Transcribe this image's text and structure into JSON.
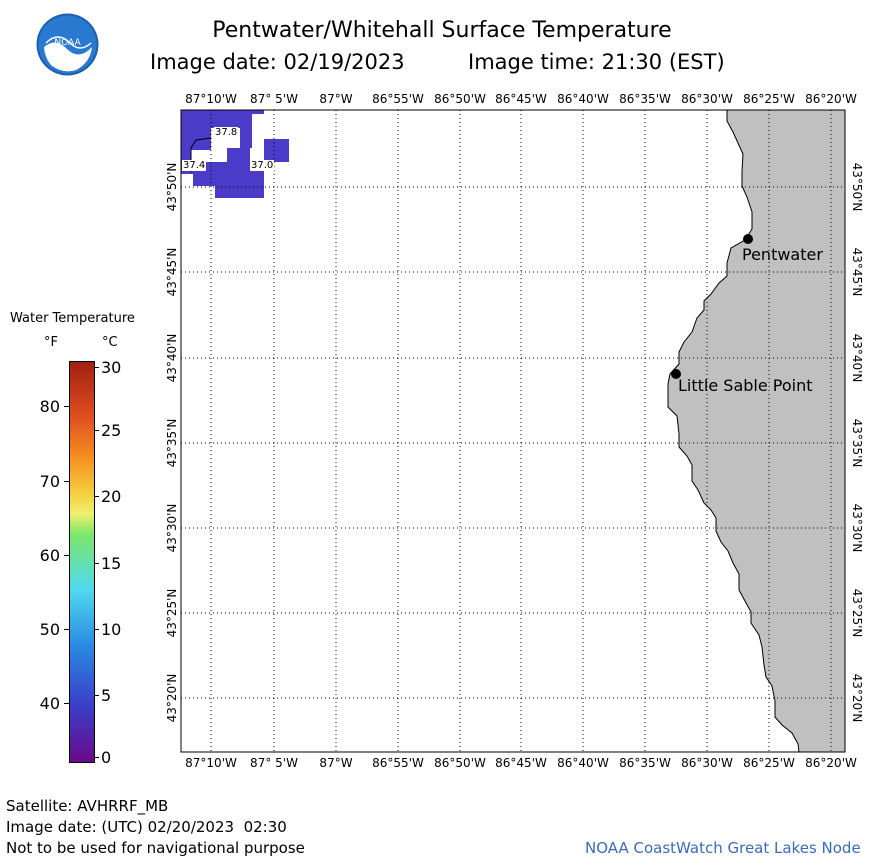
{
  "header": {
    "title": "Pentwater/Whitehall Surface Temperature",
    "image_date": "Image date: 02/19/2023",
    "image_time": "Image time: 21:30 (EST)"
  },
  "logo": {
    "text": "NOAA"
  },
  "map": {
    "lon_labels": [
      "87°10'W",
      "87° 5'W",
      "87°W",
      "86°55'W",
      "86°50'W",
      "86°45'W",
      "86°40'W",
      "86°35'W",
      "86°30'W",
      "86°25'W",
      "86°20'W"
    ],
    "lat_labels": [
      "43°50'N",
      "43°45'N",
      "43°40'N",
      "43°35'N",
      "43°30'N",
      "43°25'N",
      "43°20'N"
    ],
    "places": [
      {
        "name": "Pentwater"
      },
      {
        "name": "Little Sable Point"
      }
    ],
    "temperature_labels": [
      "37.8",
      "37.4",
      "37.0"
    ],
    "land_color": "#c0c0c0",
    "cold_water_color": "#4a3cc8"
  },
  "legend": {
    "title": "Water Temperature",
    "unit_f": "°F",
    "unit_c": "°C",
    "f_ticks": [
      "80",
      "70",
      "60",
      "50",
      "40"
    ],
    "c_ticks": [
      "30",
      "25",
      "20",
      "15",
      "10",
      "5",
      "0"
    ]
  },
  "footer": {
    "satellite": "Satellite: AVHRRF_MB",
    "utc_date": "Image date: (UTC) 02/20/2023  02:30",
    "disclaimer": "Not to be used for navigational purpose",
    "credit": "NOAA CoastWatch Great Lakes Node"
  }
}
